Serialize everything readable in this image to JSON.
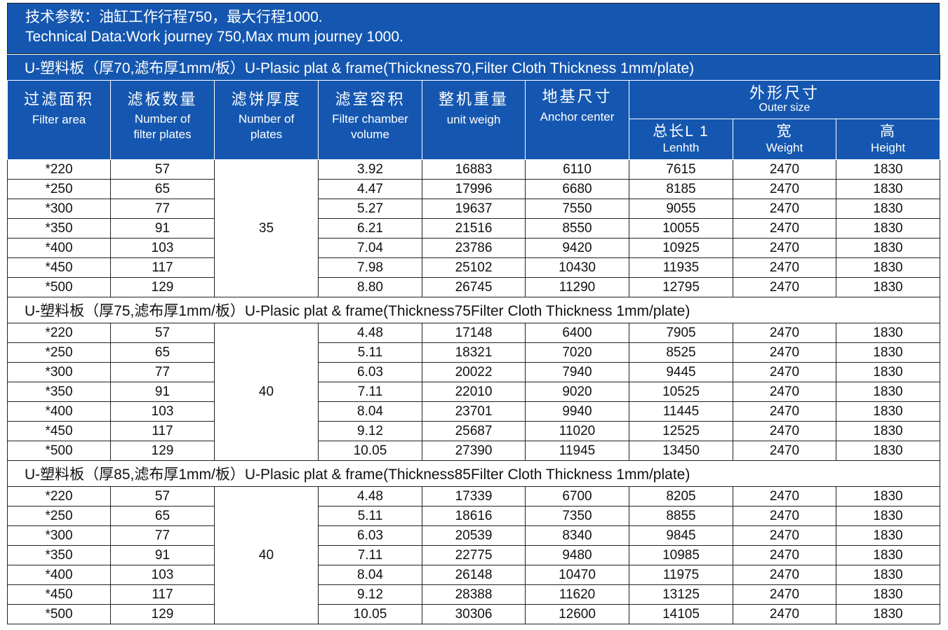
{
  "technical_data": {
    "line_cn": "技术参数：油缸工作行程750，最大行程1000.",
    "line_en": "Technical Data:Work journey 750,Max mum journey 1000."
  },
  "headers": {
    "filter_area": {
      "cn": "过滤面积",
      "en": "Filter area"
    },
    "plates": {
      "cn": "滤板数量",
      "en1": "Number of",
      "en2": "filter plates"
    },
    "cake": {
      "cn": "滤饼厚度",
      "en1": "Number of",
      "en2": "plates"
    },
    "chamber": {
      "cn": "滤室容积",
      "en1": "Filter chamber",
      "en2": "volume"
    },
    "weight": {
      "cn": "整机重量",
      "en": "unit weigh"
    },
    "anchor": {
      "cn": "地基尺寸",
      "en": "Anchor  center"
    },
    "outer": {
      "cn": "外形尺寸",
      "en": "Outer size"
    },
    "length": {
      "cn": "总长L 1",
      "en": "Lenhth"
    },
    "width": {
      "cn": "宽",
      "en": "Weight"
    },
    "height": {
      "cn": "高",
      "en": "Height"
    }
  },
  "sections": [
    {
      "title": "U-塑料板（厚70,滤布厚1mm/板）U-Plasic plat & frame(Thickness70,Filter Cloth Thickness 1mm/plate)",
      "cake_thickness": "35",
      "rows": [
        [
          "*220",
          "57",
          "3.92",
          "16883",
          "6110",
          "7615",
          "2470",
          "1830"
        ],
        [
          "*250",
          "65",
          "4.47",
          "17996",
          "6680",
          "8185",
          "2470",
          "1830"
        ],
        [
          "*300",
          "77",
          "5.27",
          "19637",
          "7550",
          "9055",
          "2470",
          "1830"
        ],
        [
          "*350",
          "91",
          "6.21",
          "21516",
          "8550",
          "10055",
          "2470",
          "1830"
        ],
        [
          "*400",
          "103",
          "7.04",
          "23786",
          "9420",
          "10925",
          "2470",
          "1830"
        ],
        [
          "*450",
          "117",
          "7.98",
          "25102",
          "10430",
          "11935",
          "2470",
          "1830"
        ],
        [
          "*500",
          "129",
          "8.80",
          "26745",
          "11290",
          "12795",
          "2470",
          "1830"
        ]
      ]
    },
    {
      "title": "U-塑料板（厚75,滤布厚1mm/板）U-Plasic plat & frame(Thickness75Filter Cloth Thickness 1mm/plate)",
      "cake_thickness": "40",
      "rows": [
        [
          "*220",
          "57",
          "4.48",
          "17148",
          "6400",
          "7905",
          "2470",
          "1830"
        ],
        [
          "*250",
          "65",
          "5.11",
          "18321",
          "7020",
          "8525",
          "2470",
          "1830"
        ],
        [
          "*300",
          "77",
          "6.03",
          "20022",
          "7940",
          "9445",
          "2470",
          "1830"
        ],
        [
          "*350",
          "91",
          "7.11",
          "22010",
          "9020",
          "10525",
          "2470",
          "1830"
        ],
        [
          "*400",
          "103",
          "8.04",
          "23701",
          "9940",
          "11445",
          "2470",
          "1830"
        ],
        [
          "*450",
          "117",
          "9.12",
          "25687",
          "11020",
          "12525",
          "2470",
          "1830"
        ],
        [
          "*500",
          "129",
          "10.05",
          "27390",
          "11945",
          "13450",
          "2470",
          "1830"
        ]
      ]
    },
    {
      "title": "U-塑料板（厚85,滤布厚1mm/板）U-Plasic plat & frame(Thickness85Filter Cloth Thickness 1mm/plate)",
      "cake_thickness": "40",
      "rows": [
        [
          "*220",
          "57",
          "4.48",
          "17339",
          "6700",
          "8205",
          "2470",
          "1830"
        ],
        [
          "*250",
          "65",
          "5.11",
          "18616",
          "7350",
          "8855",
          "2470",
          "1830"
        ],
        [
          "*300",
          "77",
          "6.03",
          "20539",
          "8340",
          "9845",
          "2470",
          "1830"
        ],
        [
          "*350",
          "91",
          "7.11",
          "22775",
          "9480",
          "10985",
          "2470",
          "1830"
        ],
        [
          "*400",
          "103",
          "8.04",
          "26148",
          "10470",
          "11975",
          "2470",
          "1830"
        ],
        [
          "*450",
          "117",
          "9.12",
          "28388",
          "11620",
          "13125",
          "2470",
          "1830"
        ],
        [
          "*500",
          "129",
          "10.05",
          "30306",
          "12600",
          "14105",
          "2470",
          "1830"
        ]
      ]
    }
  ],
  "colors": {
    "header_blue": "#1557b0",
    "border": "#222222"
  }
}
